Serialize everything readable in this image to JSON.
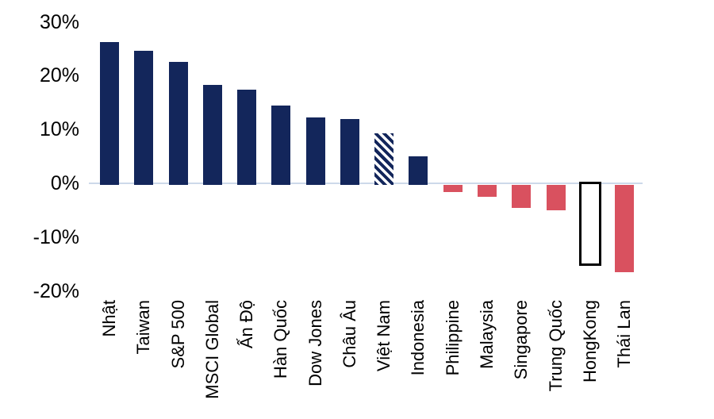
{
  "chart_data": {
    "type": "bar",
    "title": "",
    "xlabel": "",
    "ylabel": "",
    "categories": [
      "Nhật",
      "Taiwan",
      "S&P 500",
      "MSCI Global",
      "Ấn Độ",
      "Hàn Quốc",
      "Dow Jones",
      "Châu Âu",
      "Việt Nam",
      "Indonesia",
      "Philippine",
      "Malaysia",
      "Singapore",
      "Trung Quốc",
      "HongKong",
      "Thái Lan"
    ],
    "values": [
      26.3,
      24.6,
      22.6,
      18.3,
      17.4,
      14.4,
      12.2,
      11.9,
      9.3,
      5.0,
      -1.6,
      -2.5,
      -4.5,
      -5.0,
      -15.0,
      -16.5
    ],
    "bar_variants": [
      "navy",
      "navy",
      "navy",
      "navy",
      "navy",
      "navy",
      "navy",
      "navy",
      "hatch",
      "navy",
      "red",
      "red",
      "red",
      "red",
      "outline",
      "red"
    ],
    "yticks": [
      {
        "label": "30%",
        "value": 30
      },
      {
        "label": "20%",
        "value": 20
      },
      {
        "label": "10%",
        "value": 10
      },
      {
        "label": "0%",
        "value": 0
      },
      {
        "label": "-10%",
        "value": -10
      },
      {
        "label": "-20%",
        "value": -20
      }
    ],
    "ylim": [
      -20,
      30
    ],
    "grid": false,
    "legend": false,
    "colors": {
      "positive_navy": "#13265B",
      "negative_red": "#D9515F",
      "outline_fill": "#FFFFFF",
      "outline_border": "#000000",
      "hatch_fg": "#13265B",
      "hatch_bg": "#FFFFFF",
      "zero_axis_line": "#CDD9EA",
      "text": "#000000"
    }
  }
}
